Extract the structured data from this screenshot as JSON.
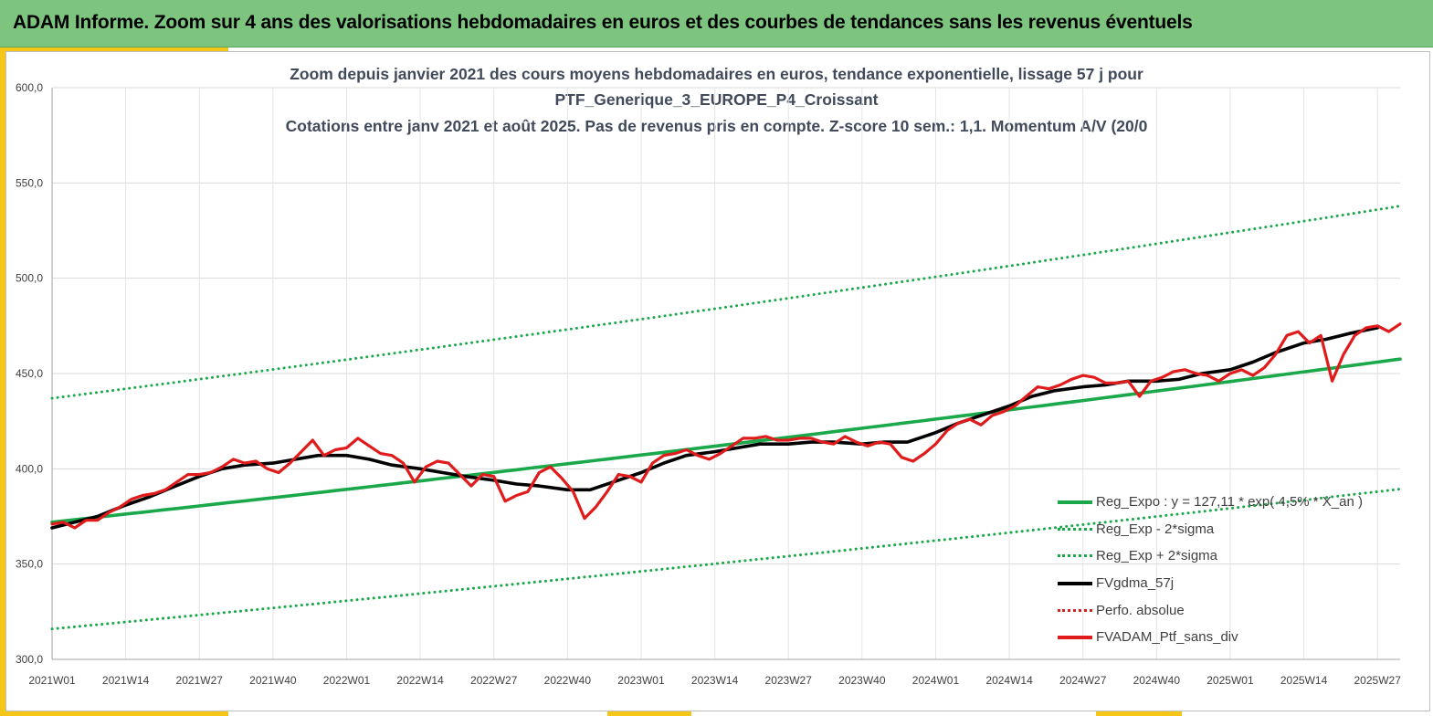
{
  "banner": {
    "title": "ADAM Informe. Zoom sur 4 ans des valorisations hebdomadaires en euros et des courbes de tendances sans les revenus éventuels"
  },
  "chart_data": {
    "type": "line",
    "title_lines": [
      "Zoom depuis janvier 2021 des cours moyens hebdomadaires  en euros, tendance exponentielle, lissage 57 j pour",
      "PTF_Generique_3_EUROPE_P4_Croissant",
      "Cotations entre janv 2021 et août 2025. Pas de revenus pris en compte. Z-score 10 sem.: 1,1. Momentum A/V (20/0"
    ],
    "xlabel": "",
    "ylabel": "",
    "ylim": [
      300,
      600
    ],
    "y_ticks": [
      "300,0",
      "350,0",
      "400,0",
      "450,0",
      "500,0",
      "550,0",
      "600,0"
    ],
    "x_ticks": [
      "2021W01",
      "2021W14",
      "2021W27",
      "2021W40",
      "2022W01",
      "2022W14",
      "2022W27",
      "2022W40",
      "2023W01",
      "2023W14",
      "2023W27",
      "2023W40",
      "2024W01",
      "2024W14",
      "2024W27",
      "2024W40",
      "2025W01",
      "2025W14",
      "2025W27"
    ],
    "x_range_weeks": [
      0,
      238
    ],
    "grid": true,
    "legend_position": "bottom-right",
    "series": [
      {
        "name": "Reg_Expo : y = 127,11 * exp( 4,5% * X_an )",
        "color": "#1aa84a",
        "style": "solid",
        "x": [
          0,
          234
        ],
        "y": [
          372,
          456
        ],
        "curve": "exponential"
      },
      {
        "name": "Reg_Exp - 2*sigma",
        "color": "#1aa84a",
        "style": "dotted",
        "x": [
          0,
          234
        ],
        "y": [
          316,
          388
        ],
        "curve": "exponential"
      },
      {
        "name": "Reg_Exp + 2*sigma",
        "color": "#1aa84a",
        "style": "dotted",
        "x": [
          0,
          234
        ],
        "y": [
          437,
          536
        ],
        "curve": "exponential"
      },
      {
        "name": "FVgdma_57j",
        "color": "#000000",
        "style": "solid",
        "x": [
          0,
          4,
          8,
          13,
          17,
          21,
          26,
          30,
          34,
          39,
          43,
          47,
          52,
          56,
          60,
          65,
          69,
          73,
          78,
          82,
          86,
          91,
          95,
          99,
          104,
          108,
          112,
          117,
          121,
          125,
          130,
          134,
          138,
          143,
          147,
          151,
          156,
          160,
          164,
          169,
          173,
          177,
          182,
          186,
          190,
          195,
          199,
          203,
          208,
          212,
          216,
          221,
          225,
          229,
          234
        ],
        "y": [
          369,
          372,
          375,
          381,
          385,
          390,
          396,
          400,
          402,
          403,
          405,
          407,
          407,
          405,
          402,
          400,
          398,
          396,
          394,
          392,
          391,
          389,
          389,
          393,
          398,
          403,
          407,
          409,
          411,
          413,
          413,
          414,
          414,
          413,
          414,
          414,
          419,
          424,
          428,
          433,
          438,
          441,
          443,
          444,
          446,
          446,
          447,
          450,
          452,
          456,
          461,
          466,
          468,
          471,
          474
        ]
      },
      {
        "name": "Perfo. absolue",
        "color": "#d32222",
        "style": "dotted",
        "x": [],
        "y": []
      },
      {
        "name": "FVADAM_Ptf_sans_div",
        "color": "#e01b1b",
        "style": "solid",
        "x": [
          0,
          2,
          4,
          6,
          8,
          10,
          12,
          14,
          16,
          18,
          20,
          22,
          24,
          26,
          28,
          30,
          32,
          34,
          36,
          38,
          40,
          42,
          44,
          46,
          48,
          50,
          52,
          54,
          56,
          58,
          60,
          62,
          64,
          66,
          68,
          70,
          72,
          74,
          76,
          78,
          80,
          82,
          84,
          86,
          88,
          90,
          92,
          94,
          96,
          98,
          100,
          102,
          104,
          106,
          108,
          110,
          112,
          114,
          116,
          118,
          120,
          122,
          124,
          126,
          128,
          130,
          132,
          134,
          136,
          138,
          140,
          142,
          144,
          146,
          148,
          150,
          152,
          154,
          156,
          158,
          160,
          162,
          164,
          166,
          168,
          170,
          172,
          174,
          176,
          178,
          180,
          182,
          184,
          186,
          188,
          190,
          192,
          194,
          196,
          198,
          200,
          202,
          204,
          206,
          208,
          210,
          212,
          214,
          216,
          218,
          220,
          222,
          224,
          226,
          228,
          230,
          232,
          234,
          236,
          238
        ],
        "y": [
          371,
          372,
          369,
          373,
          373,
          377,
          380,
          384,
          386,
          387,
          389,
          393,
          397,
          397,
          398,
          401,
          405,
          403,
          404,
          400,
          398,
          403,
          409,
          415,
          407,
          410,
          411,
          416,
          412,
          408,
          407,
          403,
          393,
          401,
          404,
          403,
          397,
          391,
          397,
          396,
          383,
          386,
          388,
          398,
          401,
          395,
          388,
          374,
          380,
          388,
          397,
          396,
          393,
          403,
          407,
          408,
          410,
          407,
          405,
          408,
          412,
          416,
          416,
          417,
          415,
          415,
          416,
          416,
          414,
          413,
          417,
          414,
          412,
          414,
          413,
          406,
          404,
          408,
          413,
          420,
          424,
          426,
          423,
          428,
          430,
          433,
          438,
          443,
          442,
          444,
          447,
          449,
          448,
          445,
          445,
          446,
          438,
          446,
          448,
          451,
          452,
          450,
          449,
          446,
          450,
          452,
          449,
          453,
          460,
          470,
          472,
          466,
          470,
          446,
          460,
          470,
          474,
          475,
          472,
          476
        ]
      }
    ]
  }
}
